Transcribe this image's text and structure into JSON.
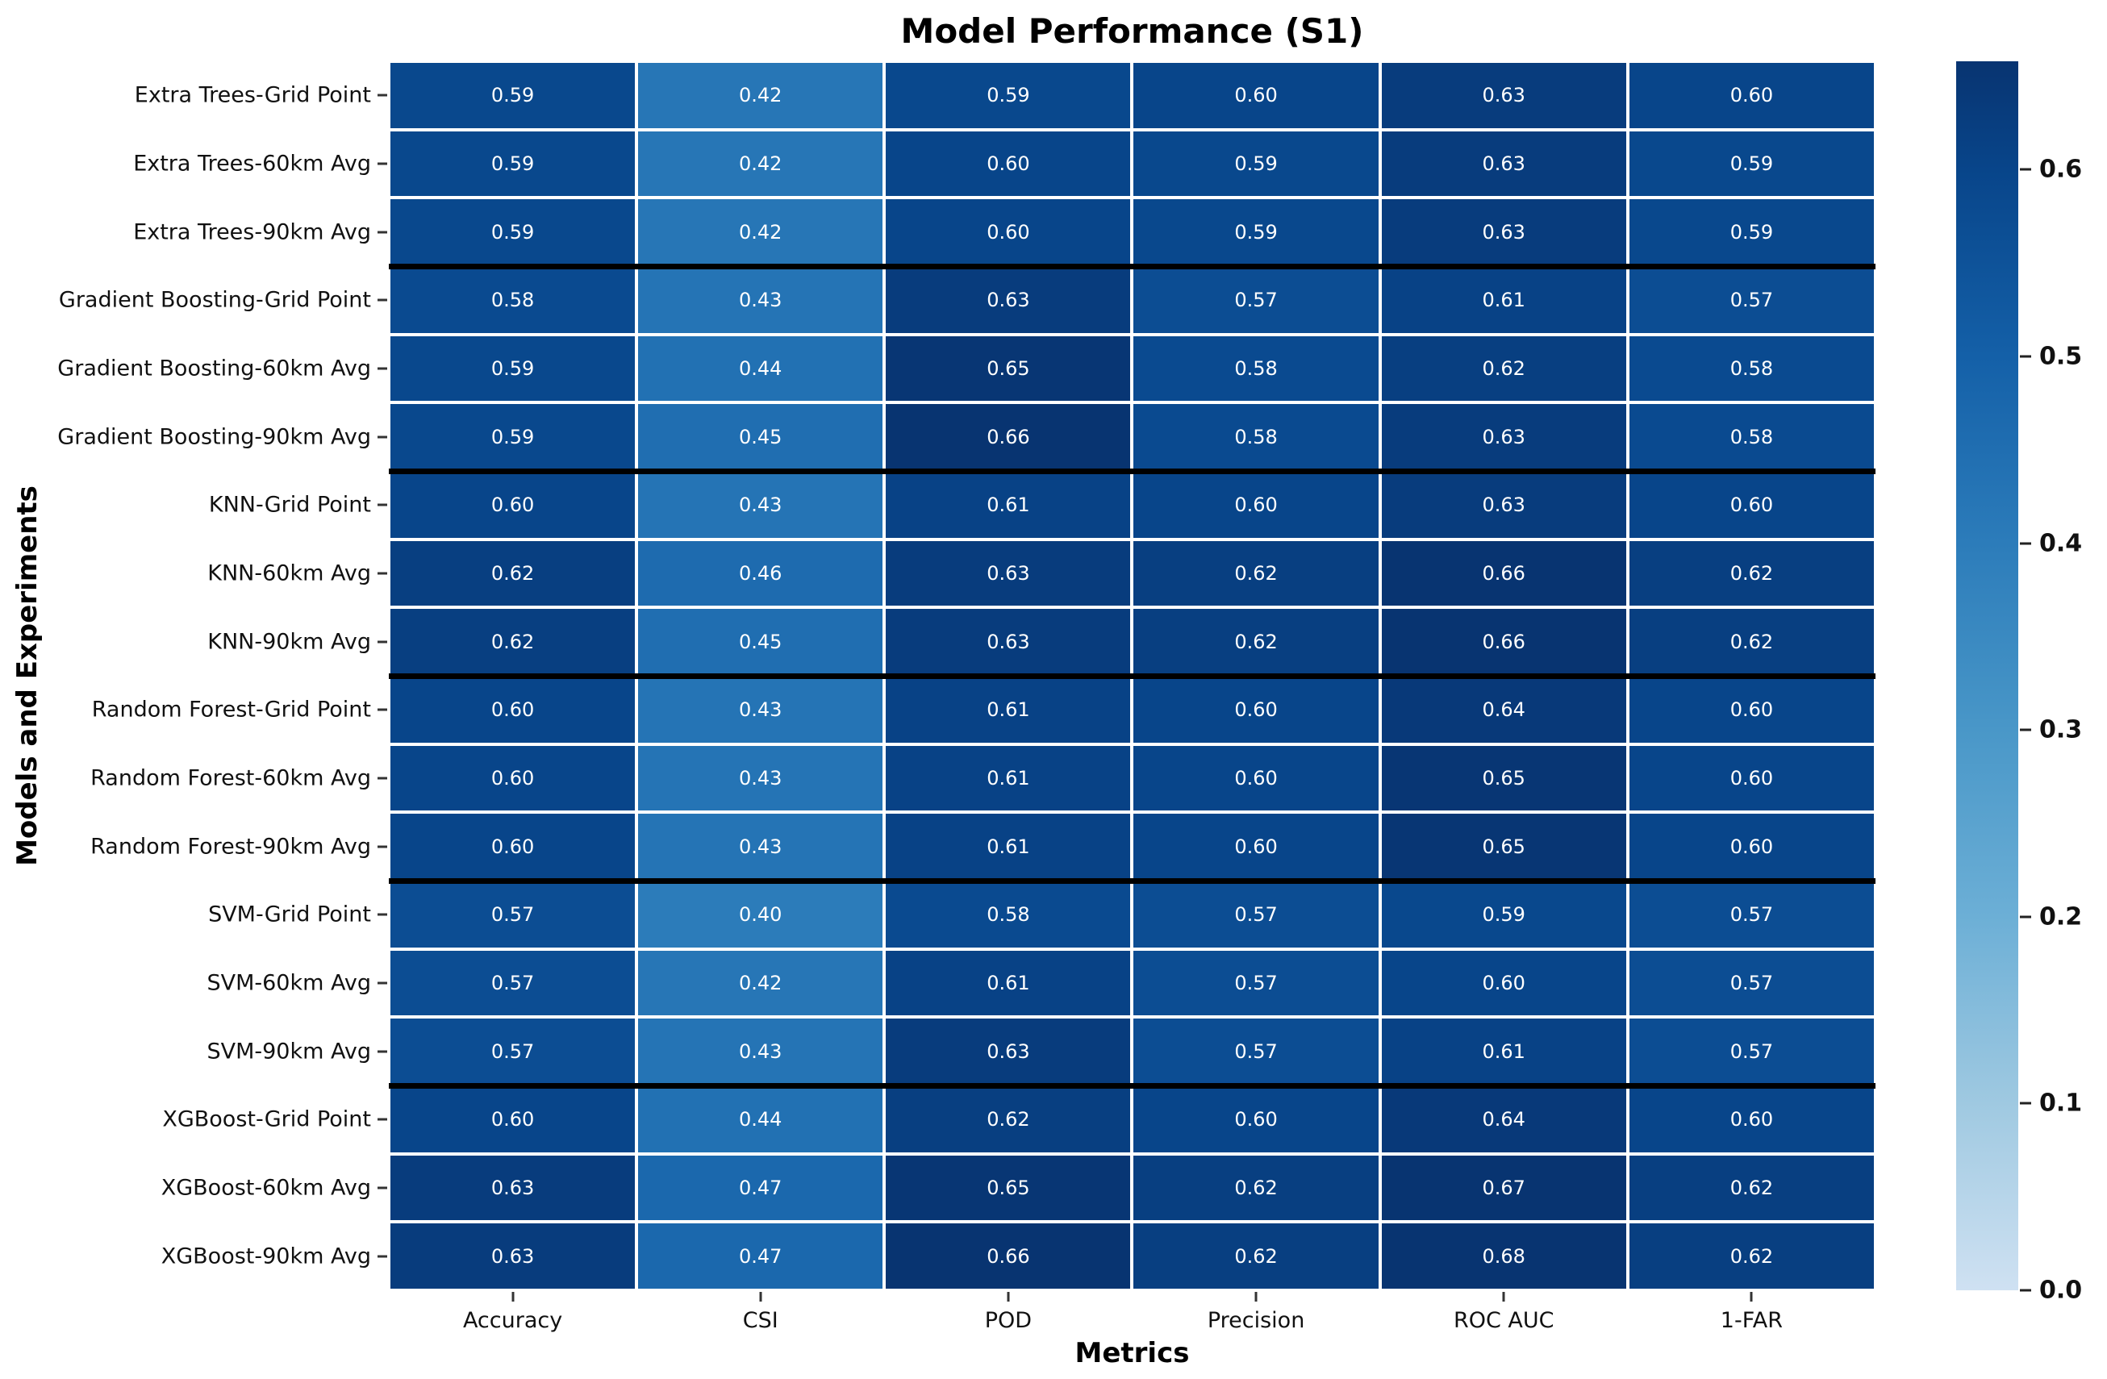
{
  "page": {
    "background": "#ffffff"
  },
  "chart_data": {
    "type": "heatmap",
    "title": "Model Performance (S1)",
    "xlabel": "Metrics",
    "ylabel": "Models and Experiments",
    "columns": [
      "Accuracy",
      "CSI",
      "POD",
      "Precision",
      "ROC AUC",
      "1-FAR"
    ],
    "rows": [
      {
        "label": "Extra Trees-Grid Point",
        "values": [
          0.59,
          0.42,
          0.59,
          0.6,
          0.63,
          0.6
        ]
      },
      {
        "label": "Extra Trees-60km Avg",
        "values": [
          0.59,
          0.42,
          0.6,
          0.59,
          0.63,
          0.59
        ]
      },
      {
        "label": "Extra Trees-90km Avg",
        "values": [
          0.59,
          0.42,
          0.6,
          0.59,
          0.63,
          0.59
        ]
      },
      {
        "label": "Gradient Boosting-Grid Point",
        "values": [
          0.58,
          0.43,
          0.63,
          0.57,
          0.61,
          0.57
        ]
      },
      {
        "label": "Gradient Boosting-60km Avg",
        "values": [
          0.59,
          0.44,
          0.65,
          0.58,
          0.62,
          0.58
        ]
      },
      {
        "label": "Gradient Boosting-90km Avg",
        "values": [
          0.59,
          0.45,
          0.66,
          0.58,
          0.63,
          0.58
        ]
      },
      {
        "label": "KNN-Grid Point",
        "values": [
          0.6,
          0.43,
          0.61,
          0.6,
          0.63,
          0.6
        ]
      },
      {
        "label": "KNN-60km Avg",
        "values": [
          0.62,
          0.46,
          0.63,
          0.62,
          0.66,
          0.62
        ]
      },
      {
        "label": "KNN-90km Avg",
        "values": [
          0.62,
          0.45,
          0.63,
          0.62,
          0.66,
          0.62
        ]
      },
      {
        "label": "Random Forest-Grid Point",
        "values": [
          0.6,
          0.43,
          0.61,
          0.6,
          0.64,
          0.6
        ]
      },
      {
        "label": "Random Forest-60km Avg",
        "values": [
          0.6,
          0.43,
          0.61,
          0.6,
          0.65,
          0.6
        ]
      },
      {
        "label": "Random Forest-90km Avg",
        "values": [
          0.6,
          0.43,
          0.61,
          0.6,
          0.65,
          0.6
        ]
      },
      {
        "label": "SVM-Grid Point",
        "values": [
          0.57,
          0.4,
          0.58,
          0.57,
          0.59,
          0.57
        ]
      },
      {
        "label": "SVM-60km Avg",
        "values": [
          0.57,
          0.42,
          0.61,
          0.57,
          0.6,
          0.57
        ]
      },
      {
        "label": "SVM-90km Avg",
        "values": [
          0.57,
          0.43,
          0.63,
          0.57,
          0.61,
          0.57
        ]
      },
      {
        "label": "XGBoost-Grid Point",
        "values": [
          0.6,
          0.44,
          0.62,
          0.6,
          0.64,
          0.6
        ]
      },
      {
        "label": "XGBoost-60km Avg",
        "values": [
          0.63,
          0.47,
          0.65,
          0.62,
          0.67,
          0.62
        ]
      },
      {
        "label": "XGBoost-90km Avg",
        "values": [
          0.63,
          0.47,
          0.66,
          0.62,
          0.68,
          0.62
        ]
      }
    ],
    "value_decimals": 2,
    "cell_text_color": "#ffffff",
    "group_separators_after_rows": [
      3,
      6,
      9,
      12,
      15
    ],
    "separator_color": "#000000",
    "gridline_color": "#ffffff",
    "colormap": {
      "name": "Blues",
      "anchors": [
        {
          "v": 0.0,
          "c": "#cfe1f2"
        },
        {
          "v": 0.1,
          "c": "#9fc9e1"
        },
        {
          "v": 0.2,
          "c": "#6cafd6"
        },
        {
          "v": 0.3,
          "c": "#4997c8"
        },
        {
          "v": 0.4,
          "c": "#2c7cba"
        },
        {
          "v": 0.5,
          "c": "#1460a8"
        },
        {
          "v": 0.6,
          "c": "#08458a"
        },
        {
          "v": 0.658,
          "c": "#083471"
        }
      ]
    },
    "colorbar": {
      "vmin": 0.0,
      "vmax": 0.658,
      "ticks": [
        {
          "v": 0.0,
          "label": "0.0"
        },
        {
          "v": 0.1,
          "label": "0.1"
        },
        {
          "v": 0.2,
          "label": "0.2"
        },
        {
          "v": 0.3,
          "label": "0.3"
        },
        {
          "v": 0.4,
          "label": "0.4"
        },
        {
          "v": 0.5,
          "label": "0.5"
        },
        {
          "v": 0.6,
          "label": "0.6"
        }
      ],
      "legend_position": "right"
    },
    "grid": "off"
  }
}
